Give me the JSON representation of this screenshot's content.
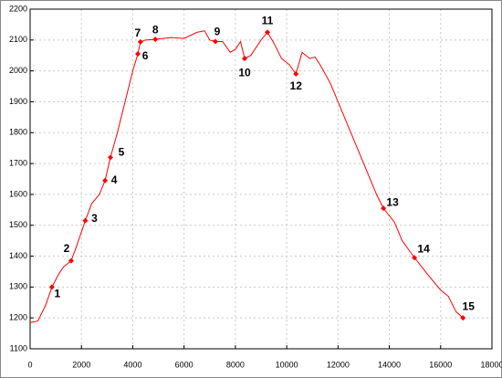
{
  "chart_data": {
    "type": "line",
    "x": [
      0,
      300,
      600,
      850,
      1100,
      1300,
      1600,
      1800,
      2150,
      2400,
      2700,
      2920,
      3130,
      3400,
      3700,
      4000,
      4200,
      4300,
      4500,
      4880,
      5500,
      6000,
      6500,
      6800,
      7000,
      7220,
      7500,
      7800,
      8000,
      8200,
      8360,
      8600,
      9000,
      9250,
      9500,
      9800,
      10100,
      10360,
      10600,
      10900,
      11100,
      11300,
      11700,
      12000,
      12500,
      13000,
      13500,
      13770,
      14200,
      14500,
      14980,
      15500,
      16000,
      16300,
      16600,
      16870
    ],
    "series": [
      {
        "color": "#ff0000",
        "values": [
          1185,
          1190,
          1240,
          1300,
          1340,
          1365,
          1385,
          1430,
          1515,
          1570,
          1600,
          1645,
          1720,
          1800,
          1900,
          2000,
          2055,
          2094,
          2100,
          2102,
          2108,
          2105,
          2125,
          2130,
          2100,
          2095,
          2095,
          2060,
          2070,
          2095,
          2040,
          2050,
          2100,
          2125,
          2090,
          2040,
          2020,
          1990,
          2060,
          2040,
          2045,
          2020,
          1960,
          1900,
          1800,
          1700,
          1600,
          1555,
          1510,
          1450,
          1395,
          1340,
          1290,
          1270,
          1220,
          1200
        ]
      }
    ],
    "points": {
      "labels": [
        "1",
        "2",
        "3",
        "4",
        "5",
        "6",
        "7",
        "8",
        "9",
        "10",
        "11",
        "12",
        "13",
        "14",
        "15"
      ],
      "x": [
        850,
        1600,
        2150,
        2920,
        3130,
        4200,
        4300,
        4880,
        7220,
        8360,
        9250,
        10360,
        13770,
        14980,
        16870
      ],
      "values": [
        1300,
        1385,
        1515,
        1645,
        1720,
        2055,
        2094,
        2102,
        2095,
        2040,
        2125,
        1990,
        1555,
        1395,
        1200
      ],
      "color": "#ff0000"
    },
    "xlim": [
      0,
      18000
    ],
    "xticks": [
      0,
      2000,
      4000,
      6000,
      8000,
      10000,
      12000,
      14000,
      16000,
      18000
    ],
    "ylim": [
      1100,
      2200
    ],
    "yticks": [
      1100,
      1200,
      1300,
      1400,
      1500,
      1600,
      1700,
      1800,
      1900,
      2000,
      2100,
      2200
    ],
    "grid": true
  }
}
